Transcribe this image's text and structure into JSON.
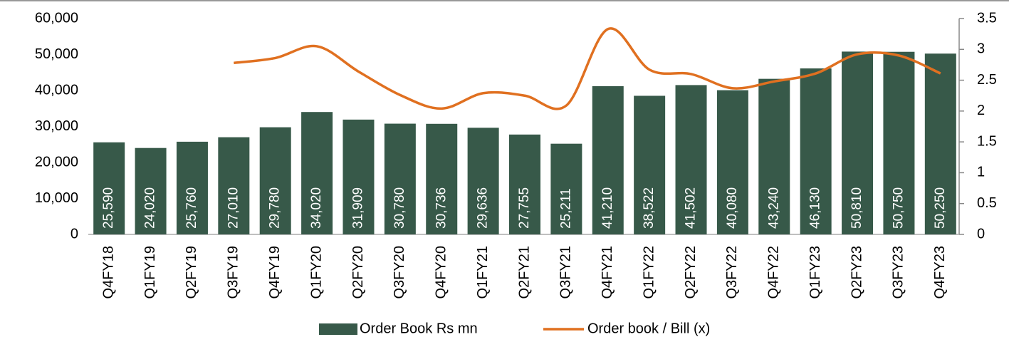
{
  "chart_data": {
    "type": "bar-line",
    "categories": [
      "Q4FY18",
      "Q1FY19",
      "Q2FY19",
      "Q3FY19",
      "Q4FY19",
      "Q1FY20",
      "Q2FY20",
      "Q3FY20",
      "Q4FY20",
      "Q1FY21",
      "Q2FY21",
      "Q3FY21",
      "Q4FY21",
      "Q1FY22",
      "Q2FY22",
      "Q3FY22",
      "Q4FY22",
      "Q1FY23",
      "Q2FY23",
      "Q3FY23",
      "Q4FY23"
    ],
    "series": [
      {
        "name": "Order Book Rs mn",
        "type": "bar",
        "color": "#375949",
        "values": [
          25590,
          24020,
          25760,
          27010,
          29780,
          34020,
          31909,
          30780,
          30736,
          29636,
          27755,
          25211,
          41210,
          38522,
          41502,
          40080,
          43240,
          46130,
          50810,
          50750,
          50250
        ],
        "value_labels": [
          "25,590",
          "24,020",
          "25,760",
          "27,010",
          "29,780",
          "34,020",
          "31,909",
          "30,780",
          "30,736",
          "29,636",
          "27,755",
          "25,211",
          "41,210",
          "38,522",
          "41,502",
          "40,080",
          "43,240",
          "46,130",
          "50,810",
          "50,750",
          "50,250"
        ]
      },
      {
        "name": "Order book / Bill (x)",
        "type": "line",
        "color": "#e07020",
        "axis": "y2",
        "values": [
          null,
          null,
          null,
          2.78,
          2.86,
          3.05,
          2.64,
          2.26,
          2.04,
          2.29,
          2.25,
          2.09,
          3.33,
          2.67,
          2.6,
          2.37,
          2.48,
          2.61,
          2.92,
          2.9,
          2.61
        ]
      }
    ],
    "ylim": [
      0,
      60000
    ],
    "yticks": [
      0,
      {
        "value": 10000,
        "label": "10,000"
      },
      {
        "value": 20000,
        "label": "20,000"
      },
      {
        "value": 30000,
        "label": "30,000"
      },
      {
        "value": 40000,
        "label": "40,000"
      },
      {
        "value": 50000,
        "label": "50,000"
      },
      {
        "value": 60000,
        "label": "60,000"
      }
    ],
    "y2lim": [
      0,
      3.5
    ],
    "y2ticks": [
      0,
      0.5,
      1,
      1.5,
      2,
      2.5,
      3,
      3.5
    ],
    "legend": "bottom"
  }
}
